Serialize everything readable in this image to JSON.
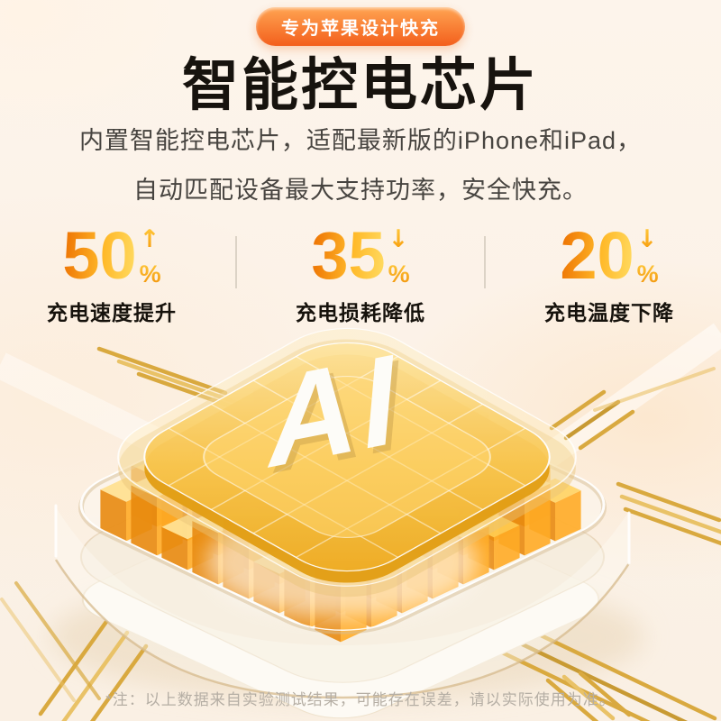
{
  "badge": {
    "label": "专为苹果设计快充"
  },
  "title": "智能控电芯片",
  "subtitle": {
    "line1": "内置智能控电芯片，适配最新版的iPhone和iPad，",
    "line2": "自动匹配设备最大支持功率，安全快充。"
  },
  "stats": [
    {
      "value": "50",
      "unit": "%",
      "direction": "up",
      "arrow": "↑",
      "label": "充电速度提升"
    },
    {
      "value": "35",
      "unit": "%",
      "direction": "down",
      "arrow": "↓",
      "label": "充电损耗降低"
    },
    {
      "value": "20",
      "unit": "%",
      "direction": "down",
      "arrow": "↓",
      "label": "充电温度下降"
    }
  ],
  "chip": {
    "label": "AI"
  },
  "footnote": "*注：以上数据来自实验测试结果，可能存在误差，请以实际使用为准。",
  "colors": {
    "accent_orange": "#ee7504",
    "accent_yellow": "#ffd95e",
    "badge_gradient_top": "#ffa452",
    "badge_gradient_bottom": "#f35f1c",
    "gold_wire": "#d9a93f",
    "title_text": "#17130e",
    "subtitle_text": "#474440",
    "footnote_text": "#b5aea4"
  }
}
